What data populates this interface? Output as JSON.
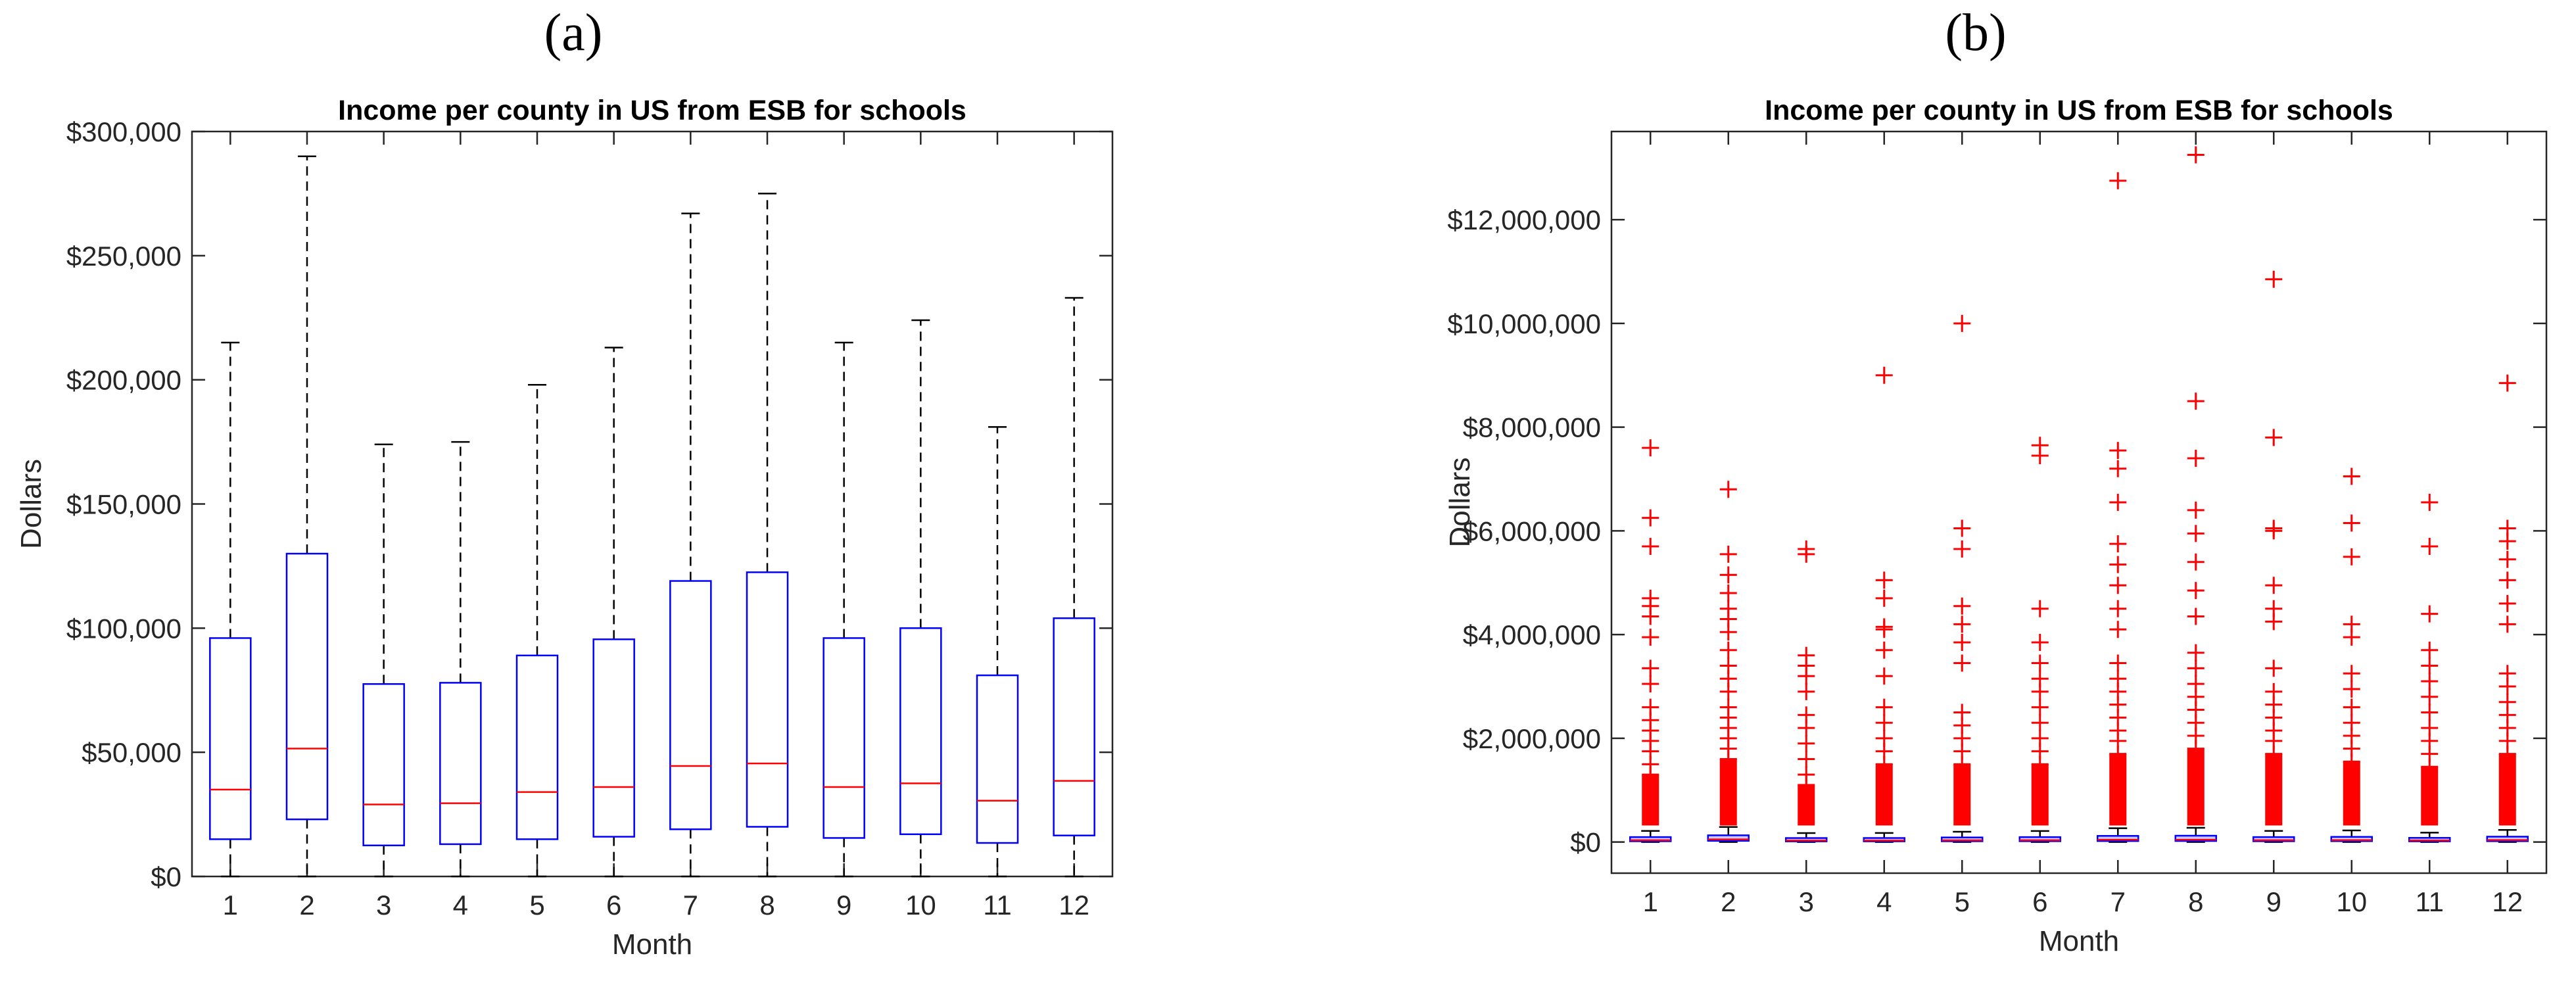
{
  "panels": [
    {
      "label": "(a)"
    },
    {
      "label": "(b)"
    }
  ],
  "colors": {
    "box": "#0000ff",
    "median": "#ff0000",
    "outlier": "#ff0000",
    "whisker": "#000000",
    "axis": "#262626"
  },
  "chart_data": [
    {
      "type": "box",
      "title": "Income per county in US from ESB for schools",
      "xlabel": "Month",
      "ylabel": "Dollars",
      "categories": [
        "1",
        "2",
        "3",
        "4",
        "5",
        "6",
        "7",
        "8",
        "9",
        "10",
        "11",
        "12"
      ],
      "ylim": [
        0,
        300000
      ],
      "yticks": [
        0,
        50000,
        100000,
        150000,
        200000,
        250000,
        300000
      ],
      "ytick_labels": [
        "$0",
        "$50,000",
        "$100,000",
        "$150,000",
        "$200,000",
        "$250,000",
        "$300,000"
      ],
      "boxes": [
        {
          "min": 0,
          "q1": 15000,
          "median": 35000,
          "q3": 96000,
          "max": 215000
        },
        {
          "min": 0,
          "q1": 23000,
          "median": 51500,
          "q3": 130000,
          "max": 290000
        },
        {
          "min": 0,
          "q1": 12500,
          "median": 29000,
          "q3": 77500,
          "max": 174000
        },
        {
          "min": 0,
          "q1": 13000,
          "median": 29500,
          "q3": 78000,
          "max": 175000
        },
        {
          "min": 0,
          "q1": 15000,
          "median": 34000,
          "q3": 89000,
          "max": 198000
        },
        {
          "min": 0,
          "q1": 16000,
          "median": 36000,
          "q3": 95500,
          "max": 213000
        },
        {
          "min": 0,
          "q1": 19000,
          "median": 44500,
          "q3": 119000,
          "max": 267000
        },
        {
          "min": 0,
          "q1": 20000,
          "median": 45500,
          "q3": 122500,
          "max": 275000
        },
        {
          "min": 0,
          "q1": 15500,
          "median": 36000,
          "q3": 96000,
          "max": 215000
        },
        {
          "min": 0,
          "q1": 17000,
          "median": 37500,
          "q3": 100000,
          "max": 224000
        },
        {
          "min": 0,
          "q1": 13500,
          "median": 30500,
          "q3": 81000,
          "max": 181000
        },
        {
          "min": 0,
          "q1": 16500,
          "median": 38500,
          "q3": 104000,
          "max": 233000
        }
      ]
    },
    {
      "type": "box",
      "title": "Income per county in US from ESB for schools",
      "xlabel": "Month",
      "ylabel": "Dollars",
      "categories": [
        "1",
        "2",
        "3",
        "4",
        "5",
        "6",
        "7",
        "8",
        "9",
        "10",
        "11",
        "12"
      ],
      "ylim": [
        -600000,
        13700000
      ],
      "yticks": [
        0,
        2000000,
        4000000,
        6000000,
        8000000,
        10000000,
        12000000
      ],
      "ytick_labels": [
        "$0",
        "$2,000,000",
        "$4,000,000",
        "$6,000,000",
        "$8,000,000",
        "$10,000,000",
        "$12,000,000"
      ],
      "boxes": [
        {
          "min": 0,
          "q1": 15000,
          "median": 35000,
          "q3": 96000,
          "max": 215000,
          "outliers": [
            7600000,
            6250000,
            5700000,
            4700000,
            4550000,
            4350000,
            3950000,
            3350000,
            3050000,
            2600000,
            2350000,
            2150000,
            1950000,
            1750000,
            1500000,
            1300000
          ]
        },
        {
          "min": 0,
          "q1": 23000,
          "median": 51500,
          "q3": 130000,
          "max": 290000,
          "outliers": [
            6800000,
            5550000,
            5150000,
            4800000,
            4500000,
            4300000,
            4050000,
            3700000,
            3400000,
            3150000,
            2900000,
            2600000,
            2400000,
            2200000,
            2000000,
            1800000,
            1600000
          ]
        },
        {
          "min": 0,
          "q1": 12500,
          "median": 29000,
          "q3": 77500,
          "max": 174000,
          "outliers": [
            5650000,
            5550000,
            3600000,
            3400000,
            3200000,
            2900000,
            2450000,
            2200000,
            1900000,
            1600000,
            1300000,
            1100000
          ]
        },
        {
          "min": 0,
          "q1": 13000,
          "median": 29500,
          "q3": 78000,
          "max": 175000,
          "outliers": [
            9000000,
            5050000,
            4700000,
            4150000,
            4100000,
            3700000,
            3200000,
            2600000,
            2300000,
            2000000,
            1750000,
            1500000
          ]
        },
        {
          "min": 0,
          "q1": 15000,
          "median": 34000,
          "q3": 89000,
          "max": 198000,
          "outliers": [
            10000000,
            6050000,
            5650000,
            4550000,
            4200000,
            3850000,
            3450000,
            2500000,
            2250000,
            2000000,
            1750000,
            1500000
          ]
        },
        {
          "min": 0,
          "q1": 16000,
          "median": 36000,
          "q3": 95500,
          "max": 213000,
          "outliers": [
            7650000,
            7450000,
            4500000,
            3850000,
            3450000,
            3150000,
            2900000,
            2600000,
            2300000,
            2000000,
            1750000,
            1500000
          ]
        },
        {
          "min": 0,
          "q1": 19000,
          "median": 44500,
          "q3": 119000,
          "max": 267000,
          "outliers": [
            12750000,
            7550000,
            7200000,
            6550000,
            5750000,
            5350000,
            4950000,
            4500000,
            4100000,
            3450000,
            3150000,
            2900000,
            2650000,
            2400000,
            2150000,
            1950000,
            1700000
          ]
        },
        {
          "min": 0,
          "q1": 20000,
          "median": 45500,
          "q3": 122500,
          "max": 275000,
          "outliers": [
            13250000,
            8500000,
            7400000,
            6400000,
            5950000,
            5400000,
            4850000,
            4350000,
            3650000,
            3350000,
            3050000,
            2800000,
            2550000,
            2300000,
            2050000,
            1800000
          ]
        },
        {
          "min": 0,
          "q1": 15500,
          "median": 36000,
          "q3": 96000,
          "max": 215000,
          "outliers": [
            10850000,
            7800000,
            6050000,
            6000000,
            4950000,
            4500000,
            4250000,
            3350000,
            2900000,
            2650000,
            2400000,
            2150000,
            1950000,
            1700000
          ]
        },
        {
          "min": 0,
          "q1": 17000,
          "median": 37500,
          "q3": 100000,
          "max": 224000,
          "outliers": [
            7050000,
            6150000,
            5500000,
            4200000,
            3950000,
            3250000,
            2950000,
            2600000,
            2300000,
            2050000,
            1800000,
            1550000
          ]
        },
        {
          "min": 0,
          "q1": 13500,
          "median": 30500,
          "q3": 81000,
          "max": 181000,
          "outliers": [
            6550000,
            5700000,
            4400000,
            3700000,
            3400000,
            3100000,
            2800000,
            2500000,
            2200000,
            1950000,
            1700000,
            1450000
          ]
        },
        {
          "min": 0,
          "q1": 16500,
          "median": 38500,
          "q3": 104000,
          "max": 233000,
          "outliers": [
            8850000,
            6050000,
            5800000,
            5450000,
            5050000,
            4600000,
            4200000,
            3250000,
            3000000,
            2700000,
            2450000,
            2200000,
            1950000,
            1700000
          ]
        }
      ]
    }
  ]
}
